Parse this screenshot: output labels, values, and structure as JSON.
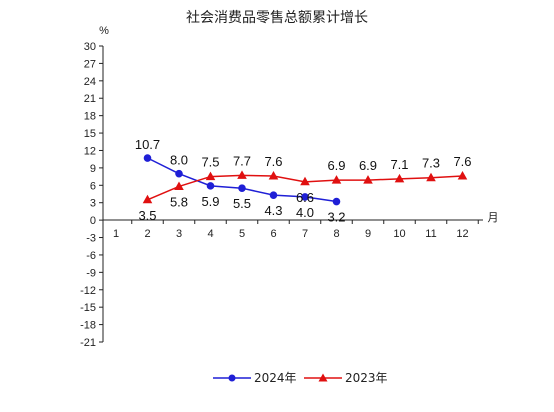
{
  "chart_data": {
    "type": "line",
    "title": "社会消费品零售总额累计增长",
    "ylabel": "%",
    "xlabel": "月",
    "ylim": [
      -21,
      30
    ],
    "y_ticks": [
      30,
      27,
      24,
      21,
      18,
      15,
      12,
      9,
      6,
      3,
      0,
      -3,
      -6,
      -9,
      -12,
      -15,
      -18,
      -21
    ],
    "x_ticks": [
      1,
      2,
      3,
      4,
      5,
      6,
      7,
      8,
      9,
      10,
      11,
      12
    ],
    "grid": false,
    "legend_position": "bottom",
    "series": [
      {
        "name": "2024年",
        "color": "#1f1fd6",
        "marker": "circle",
        "label_position": "above",
        "x": [
          2,
          3,
          4,
          5,
          6,
          7,
          8
        ],
        "values": [
          10.7,
          8.0,
          5.9,
          5.5,
          4.3,
          4.0,
          3.2
        ],
        "labels": [
          "10.7",
          "8.0",
          "5.9",
          "5.5",
          "4.3",
          "4.0",
          "3.2"
        ]
      },
      {
        "name": "2023年",
        "color": "#e01010",
        "marker": "triangle",
        "label_position": "mixed",
        "x": [
          2,
          3,
          4,
          5,
          6,
          7,
          8,
          9,
          10,
          11,
          12
        ],
        "values": [
          3.5,
          5.8,
          7.5,
          7.7,
          7.6,
          6.6,
          6.9,
          6.9,
          7.1,
          7.3,
          7.6
        ],
        "labels": [
          "3.5",
          "5.8",
          "7.5",
          "7.7",
          "7.6",
          "6.6",
          "6.9",
          "6.9",
          "7.1",
          "7.3",
          "7.6"
        ]
      }
    ]
  }
}
